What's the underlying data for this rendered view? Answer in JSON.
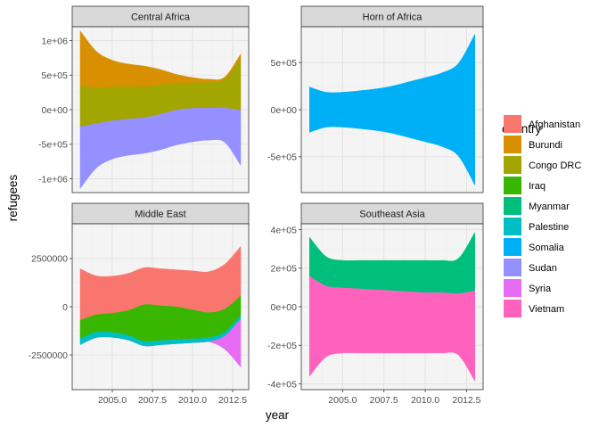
{
  "colors": {
    "Afghanistan": "#F8766D",
    "Burundi": "#D89000",
    "Congo DRC": "#A3A500",
    "Iraq": "#39B600",
    "Myanmar": "#00BF7D",
    "Palestine": "#00BFC4",
    "Somalia": "#00B0F6",
    "Sudan": "#9590FF",
    "Syria": "#E76BF3",
    "Vietnam": "#FF62BC"
  },
  "chart_data": {
    "type": "area",
    "subtype": "streamgraph, faceted",
    "xlabel": "year",
    "ylabel": "refugees",
    "legend": {
      "title": "country",
      "placement": "right",
      "entries": [
        "Afghanistan",
        "Burundi",
        "Congo DRC",
        "Iraq",
        "Myanmar",
        "Palestine",
        "Somalia",
        "Sudan",
        "Syria",
        "Vietnam"
      ]
    },
    "x": [
      2003,
      2004,
      2005,
      2006,
      2007,
      2008,
      2009,
      2010,
      2011,
      2012,
      2013
    ],
    "x_ticks": [
      2005,
      2007.5,
      2010,
      2012.5
    ],
    "x_tick_labels": [
      "2005.0",
      "2007.5",
      "2010.0",
      "2012.5"
    ],
    "xlim": [
      2002.5,
      2013.5
    ],
    "grid": true,
    "facets": [
      {
        "name": "Central Africa",
        "ylim": [
          -1200000,
          1200000
        ],
        "y_ticks": [
          -1000000,
          -500000,
          0,
          500000,
          1000000
        ],
        "y_tick_labels": [
          "-1e+06",
          "-5e+05",
          "0e+00",
          "5e+05",
          "1e+06"
        ],
        "series": [
          {
            "name": "Sudan",
            "values": [
              900000,
              650000,
              560000,
              530000,
              520000,
              520000,
              510000,
              490000,
              470000,
              500000,
              800000
            ]
          },
          {
            "name": "Congo DRC",
            "values": [
              590000,
              520000,
              490000,
              470000,
              450000,
              420000,
              390000,
              370000,
              370000,
              410000,
              750000
            ]
          },
          {
            "name": "Burundi",
            "values": [
              790000,
              520000,
              380000,
              320000,
              290000,
              220000,
              120000,
              70000,
              40000,
              30000,
              60000
            ]
          }
        ]
      },
      {
        "name": "Horn of Africa",
        "ylim": [
          -880000,
          880000
        ],
        "y_ticks": [
          -500000,
          0,
          500000
        ],
        "y_tick_labels": [
          "-5e+05",
          "0e+00",
          "5e+05"
        ],
        "series": [
          {
            "name": "Somalia",
            "values": [
              480000,
              370000,
              370000,
              400000,
              440000,
              500000,
              590000,
              680000,
              780000,
              980000,
              1600000
            ]
          }
        ]
      },
      {
        "name": "Middle East",
        "ylim": [
          -4300000,
          4300000
        ],
        "y_ticks": [
          -2500000,
          0,
          2500000
        ],
        "y_tick_labels": [
          "-2500000",
          "0",
          "2500000"
        ],
        "series": [
          {
            "name": "Syria",
            "values": [
              0,
              0,
              0,
              0,
              0,
              0,
              0,
              0,
              20000,
              700000,
              2500000
            ]
          },
          {
            "name": "Palestine",
            "values": [
              330000,
              300000,
              270000,
              260000,
              250000,
              240000,
              230000,
              220000,
              210000,
              200000,
              200000
            ]
          },
          {
            "name": "Iraq",
            "values": [
              950000,
              900000,
              1000000,
              1300000,
              1900000,
              1800000,
              1700000,
              1500000,
              1300000,
              1200000,
              1000000
            ]
          },
          {
            "name": "Afghanistan",
            "values": [
              2650000,
              2000000,
              1900000,
              1900000,
              1900000,
              1900000,
              1900000,
              2000000,
              2100000,
              2300000,
              2550000
            ]
          }
        ]
      },
      {
        "name": "Southeast Asia",
        "ylim": [
          -430000,
          430000
        ],
        "y_ticks": [
          -400000,
          -200000,
          0,
          200000,
          400000
        ],
        "y_tick_labels": [
          "-4e+05",
          "-2e+05",
          "0e+00",
          "2e+05",
          "4e+05"
        ],
        "series": [
          {
            "name": "Vietnam",
            "values": [
              520000,
              370000,
              340000,
              335000,
              330000,
              325000,
              320000,
              315000,
              315000,
              320000,
              470000
            ]
          },
          {
            "name": "Myanmar",
            "values": [
              200000,
              150000,
              140000,
              145000,
              150000,
              155000,
              160000,
              165000,
              165000,
              180000,
              300000
            ]
          }
        ]
      }
    ]
  }
}
